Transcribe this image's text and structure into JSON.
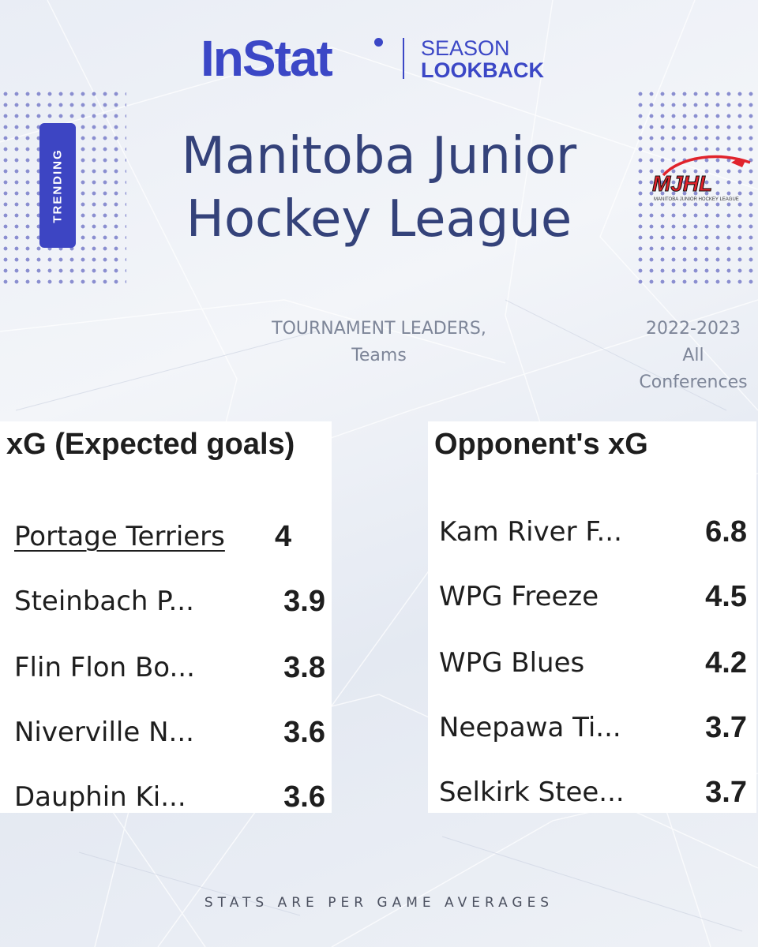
{
  "header": {
    "brand": "InStat",
    "product_line1": "SEASON",
    "product_line2": "LOOKBACK",
    "badge": "TRENDING",
    "title_line1": "Manitoba Junior",
    "title_line2": "Hockey League",
    "league_logo_text": "MJHL",
    "league_logo_caption": "MANITOBA JUNIOR HOCKEY LEAGUE"
  },
  "subtitle": {
    "line1": "TOURNAMENT LEADERS,",
    "line2": "Teams"
  },
  "season": {
    "line1": "2022-2023",
    "line2": "All",
    "line3": "Conferences"
  },
  "xg": {
    "title": "xG (Expected goals)",
    "rows": [
      {
        "team": "Portage Terriers",
        "value": "4"
      },
      {
        "team": "Steinbach P...",
        "value": "3.9"
      },
      {
        "team": "Flin Flon Bo...",
        "value": "3.8"
      },
      {
        "team": "Niverville N...",
        "value": "3.6"
      },
      {
        "team": "Dauphin Ki...",
        "value": "3.6"
      }
    ]
  },
  "opp_xg": {
    "title": "Opponent's xG",
    "rows": [
      {
        "team": "Kam River F...",
        "value": "6.8"
      },
      {
        "team": "WPG Freeze",
        "value": "4.5"
      },
      {
        "team": "WPG Blues",
        "value": "4.2"
      },
      {
        "team": "Neepawa Ti...",
        "value": "3.7"
      },
      {
        "team": "Selkirk Stee...",
        "value": "3.7"
      }
    ]
  },
  "footer": "STATS ARE PER GAME AVERAGES",
  "colors": {
    "brand_blue": "#3b47c6",
    "title_navy": "#34427a",
    "muted_gray": "#7d8598",
    "logo_red": "#e0232b"
  }
}
